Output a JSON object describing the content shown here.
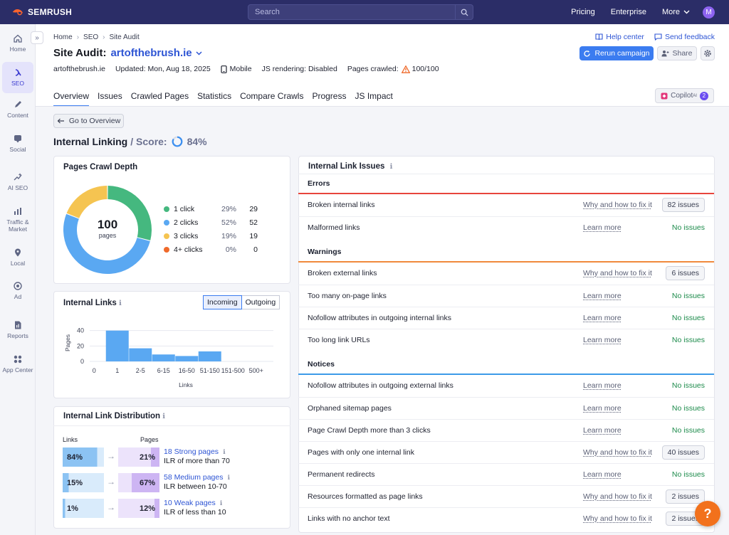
{
  "topbar": {
    "logo": "SEMRUSH",
    "search_placeholder": "Search",
    "nav": [
      "Pricing",
      "Enterprise",
      "More"
    ],
    "avatar": "M"
  },
  "sidebar": {
    "items": [
      {
        "label": "Home",
        "icon": "home-icon"
      },
      {
        "label": "SEO",
        "icon": "seo-icon",
        "active": true
      },
      {
        "label": "Content",
        "icon": "content-icon"
      },
      {
        "label": "Social",
        "icon": "social-icon"
      },
      {
        "label": "AI SEO",
        "icon": "ai-seo-icon"
      },
      {
        "label": "Traffic & Market",
        "icon": "traffic-icon"
      },
      {
        "label": "Local",
        "icon": "local-icon"
      },
      {
        "label": "Ad",
        "icon": "ad-icon"
      },
      {
        "label": "Reports",
        "icon": "reports-icon"
      },
      {
        "label": "App Center",
        "icon": "app-center-icon"
      }
    ]
  },
  "breadcrumb": [
    "Home",
    "SEO",
    "Site Audit"
  ],
  "header": {
    "title": "Site Audit:",
    "domain": "artofthebrush.ie",
    "help_center": "Help center",
    "send_feedback": "Send feedback",
    "rerun": "Rerun campaign",
    "share": "Share"
  },
  "meta": {
    "site": "artofthebrush.ie",
    "updated": "Updated: Mon, Aug 18, 2025",
    "device": "Mobile",
    "js_rendering": "JS rendering: Disabled",
    "pages_crawled_label": "Pages crawled:",
    "pages_crawled": "100/100"
  },
  "tabs": [
    "Overview",
    "Issues",
    "Crawled Pages",
    "Statistics",
    "Compare Crawls",
    "Progress",
    "JS Impact"
  ],
  "copilot": {
    "label": "Copilot",
    "sup": "AI",
    "count": "2"
  },
  "go_back": "Go to Overview",
  "section": {
    "title": "Internal Linking",
    "score_label": "/ Score:",
    "score": "84%",
    "score_value": 84
  },
  "crawl_depth": {
    "title": "Pages Crawl Depth",
    "center_value": "100",
    "center_label": "pages",
    "legend": [
      {
        "label": "1 click",
        "pct": "29%",
        "count": "29",
        "color": "#45b87f",
        "value": 29
      },
      {
        "label": "2 clicks",
        "pct": "52%",
        "count": "52",
        "color": "#5aa8f2",
        "value": 52
      },
      {
        "label": "3 clicks",
        "pct": "19%",
        "count": "19",
        "color": "#f5c451",
        "value": 19
      },
      {
        "label": "4+ clicks",
        "pct": "0%",
        "count": "0",
        "color": "#ef6a2b",
        "value": 0
      }
    ]
  },
  "internal_links": {
    "title": "Internal Links",
    "toggle": [
      "Incoming",
      "Outgoing"
    ],
    "ylabel": "Pages",
    "xlabel": "Links"
  },
  "chart_data": {
    "type": "bar",
    "categories": [
      "0",
      "1",
      "2-5",
      "6-15",
      "16-50",
      "51-150",
      "151-500",
      "500+"
    ],
    "values": [
      0,
      40,
      17,
      9,
      7,
      13,
      0,
      0
    ],
    "ylabel": "Pages",
    "xlabel": "Links",
    "yticks": [
      0,
      20,
      40
    ],
    "ylim": [
      0,
      48
    ],
    "grid": true,
    "color": "#5aa8f2"
  },
  "distribution": {
    "title": "Internal Link Distribution",
    "col_links": "Links",
    "col_pages": "Pages",
    "rows": [
      {
        "links": "84%",
        "links_value": 84,
        "pages": "21%",
        "pages_value": 21,
        "title": "18 Strong pages",
        "desc": "ILR of more than 70",
        "color_l": "#8cc3f3",
        "color_p": "#cdb5f3"
      },
      {
        "links": "15%",
        "links_value": 15,
        "pages": "67%",
        "pages_value": 67,
        "title": "58 Medium pages",
        "desc": "ILR between 10-70",
        "color_l": "#8cc3f3",
        "color_p": "#cdb5f3"
      },
      {
        "links": "1%",
        "links_value": 1,
        "pages": "12%",
        "pages_value": 12,
        "title": "10 Weak pages",
        "desc": "ILR of less than 10",
        "color_l": "#8cc3f3",
        "color_p": "#cdb5f3"
      }
    ]
  },
  "issues": {
    "title": "Internal Link Issues",
    "groups": [
      {
        "name": "Errors",
        "color": "#e8453c",
        "rows": [
          {
            "name": "Broken internal links",
            "link": "Why and how to fix it",
            "status": "82 issues",
            "pill": true
          },
          {
            "name": "Malformed links",
            "link": "Learn more",
            "status": "No issues",
            "pill": false
          }
        ]
      },
      {
        "name": "Warnings",
        "color": "#f08a3c",
        "rows": [
          {
            "name": "Broken external links",
            "link": "Why and how to fix it",
            "status": "6 issues",
            "pill": true
          },
          {
            "name": "Too many on-page links",
            "link": "Learn more",
            "status": "No issues",
            "pill": false
          },
          {
            "name": "Nofollow attributes in outgoing internal links",
            "link": "Learn more",
            "status": "No issues",
            "pill": false
          },
          {
            "name": "Too long link URLs",
            "link": "Learn more",
            "status": "No issues",
            "pill": false
          }
        ]
      },
      {
        "name": "Notices",
        "color": "#3d9ae8",
        "rows": [
          {
            "name": "Nofollow attributes in outgoing external links",
            "link": "Learn more",
            "status": "No issues",
            "pill": false
          },
          {
            "name": "Orphaned sitemap pages",
            "link": "Learn more",
            "status": "No issues",
            "pill": false
          },
          {
            "name": "Page Crawl Depth more than 3 clicks",
            "link": "Learn more",
            "status": "No issues",
            "pill": false
          },
          {
            "name": "Pages with only one internal link",
            "link": "Why and how to fix it",
            "status": "40 issues",
            "pill": true
          },
          {
            "name": "Permanent redirects",
            "link": "Learn more",
            "status": "No issues",
            "pill": false
          },
          {
            "name": "Resources formatted as page links",
            "link": "Why and how to fix it",
            "status": "2 issues",
            "pill": true
          },
          {
            "name": "Links with no anchor text",
            "link": "Why and how to fix it",
            "status": "2 issues",
            "pill": true
          }
        ]
      }
    ]
  },
  "help_fab": "?"
}
